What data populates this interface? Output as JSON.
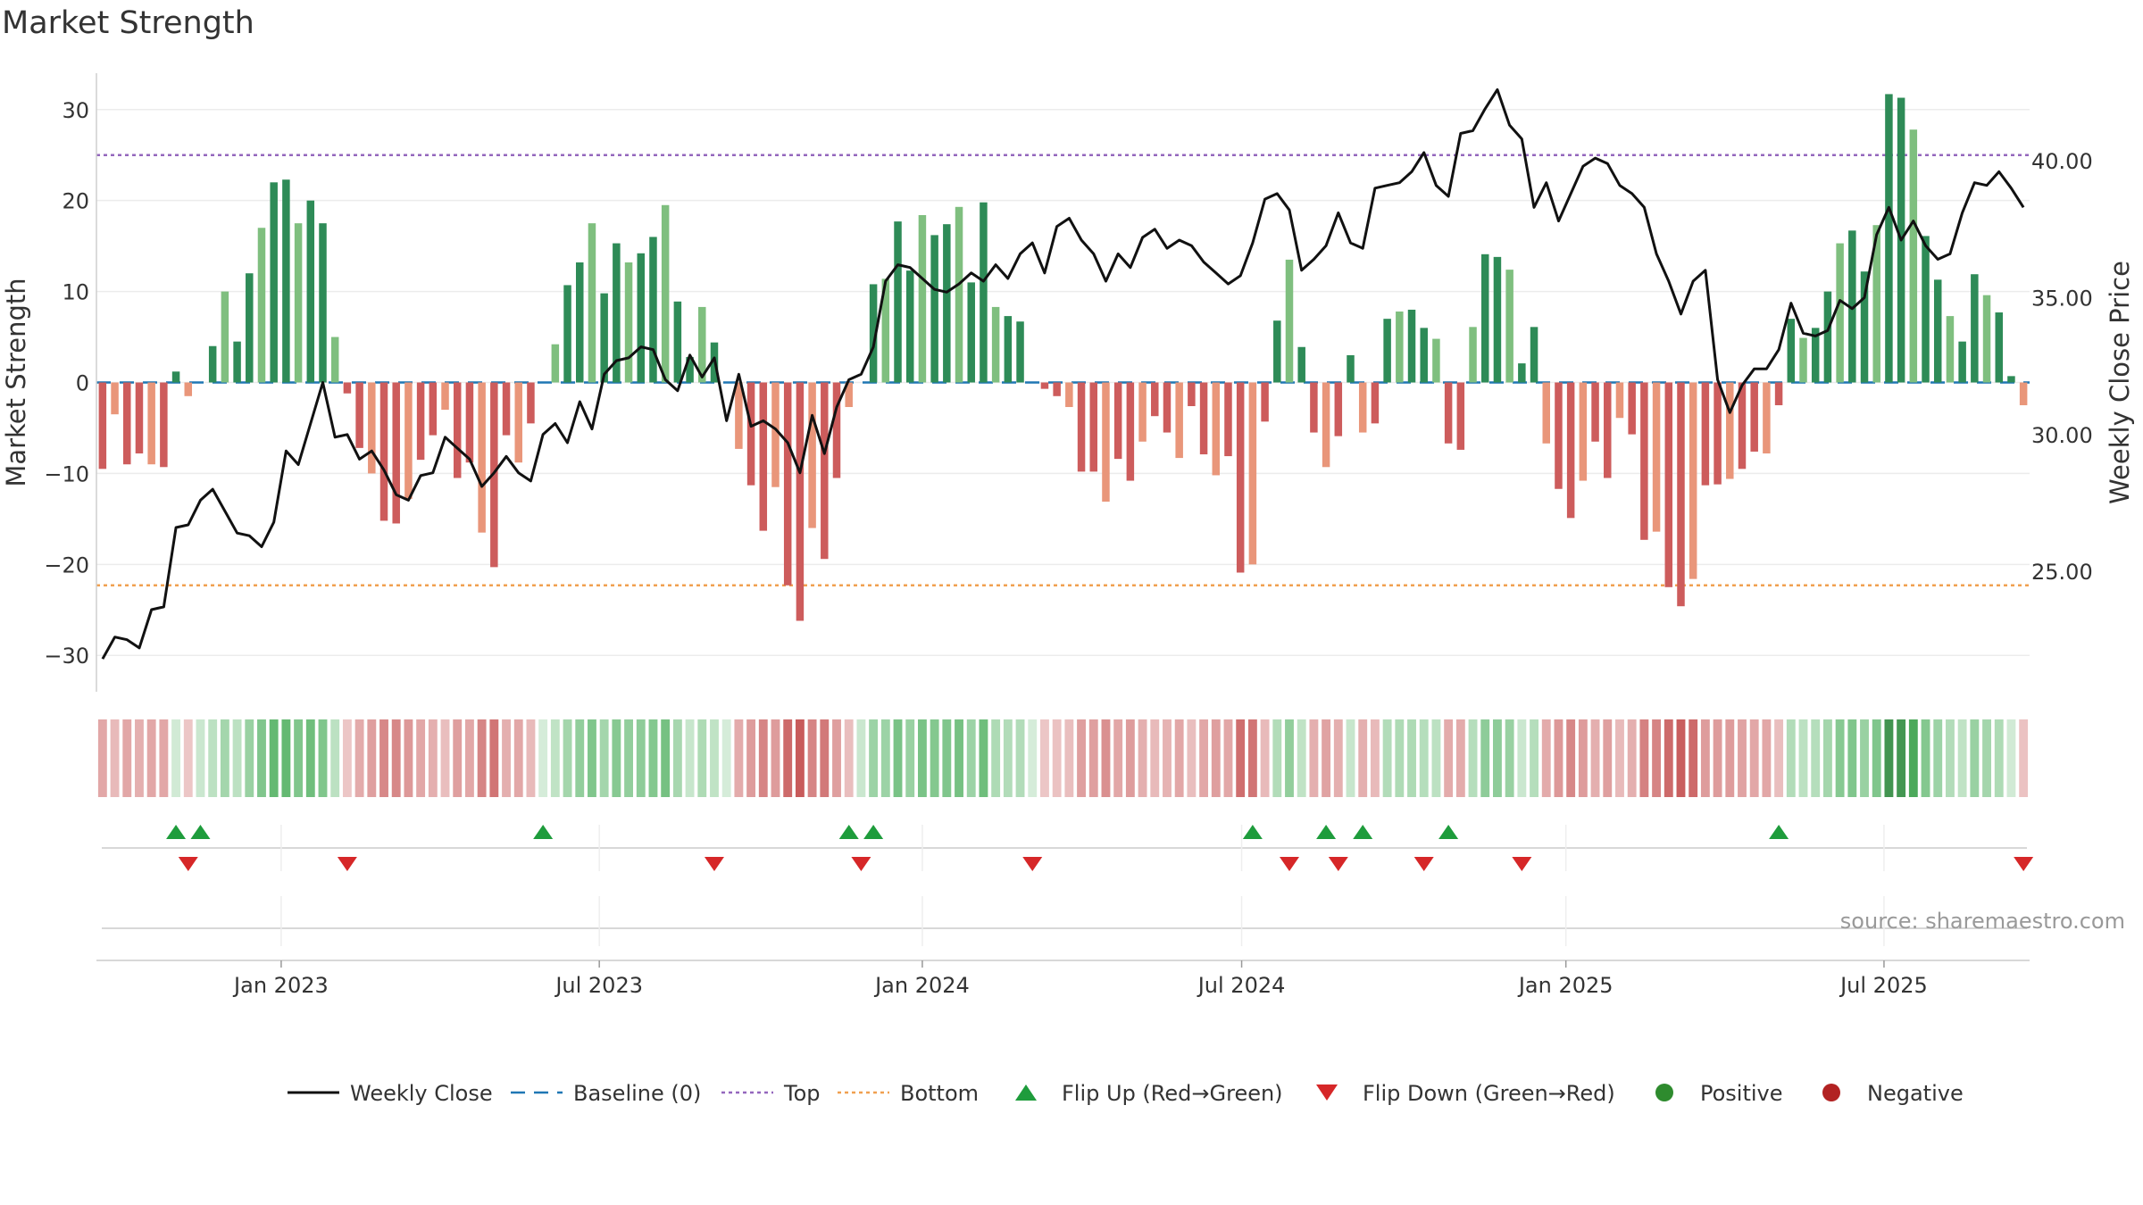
{
  "chart_data": {
    "type": "bar",
    "title": "Market Strength",
    "ylabel_left": "Market Strength",
    "ylabel_right": "Weekly Close Price",
    "ylim_left": [
      -34,
      34
    ],
    "yticks_left": [
      30,
      20,
      10,
      0,
      -10,
      -20,
      -30
    ],
    "ytick_labels_left": [
      "30",
      "20",
      "10",
      "0",
      "−10",
      "−20",
      "−30"
    ],
    "ylim_right": [
      20.6,
      43.2
    ],
    "yticks_right": [
      40,
      35,
      30,
      25
    ],
    "ytick_labels_right": [
      "40.00",
      "35.00",
      "30.00",
      "25.00"
    ],
    "x_start_date": "2022-09-26",
    "x_range_weeks": [
      -0.5,
      157.5
    ],
    "x_ticks": [
      {
        "label": "Jan 2023",
        "week": 14.6
      },
      {
        "label": "Jul 2023",
        "week": 40.6
      },
      {
        "label": "Jan 2024",
        "week": 67.0
      },
      {
        "label": "Jul 2024",
        "week": 93.1
      },
      {
        "label": "Jan 2025",
        "week": 119.6
      },
      {
        "label": "Jul 2025",
        "week": 145.6
      }
    ],
    "top_level": 25,
    "bottom_level": -22.3,
    "strength": [
      -9.5,
      -3.5,
      -9,
      -7.8,
      -9,
      -9.3,
      1.2,
      -1.5,
      0,
      4,
      10,
      4.5,
      12,
      17,
      22,
      22.3,
      17.5,
      20,
      17.5,
      5,
      -1.2,
      -7.2,
      -10,
      -15.2,
      -15.5,
      -12.8,
      -8.5,
      -5.8,
      -3,
      -10.5,
      -8.8,
      -16.5,
      -20.3,
      -5.8,
      -8.8,
      -4.5,
      0,
      4.2,
      10.7,
      13.2,
      17.5,
      9.8,
      15.3,
      13.2,
      14.2,
      16,
      19.5,
      8.9,
      2.8,
      8.3,
      4.4,
      0,
      -7.3,
      -11.3,
      -16.3,
      -11.5,
      -22.3,
      -26.2,
      -16,
      -19.4,
      -10.5,
      -2.7,
      0,
      10.8,
      11.4,
      17.7,
      12.3,
      18.4,
      16.2,
      17.4,
      19.3,
      11,
      19.8,
      8.3,
      7.3,
      6.7,
      0,
      -0.7,
      -1.5,
      -2.7,
      -9.8,
      -9.8,
      -13.1,
      -8.4,
      -10.8,
      -6.5,
      -3.7,
      -5.5,
      -8.3,
      -2.6,
      -7.9,
      -10.2,
      -8.1,
      -20.9,
      -20,
      -4.3,
      6.8,
      13.5,
      3.9,
      -5.5,
      -9.3,
      -5.9,
      3,
      -5.5,
      -4.5,
      7,
      7.8,
      8,
      6,
      4.8,
      -6.7,
      -7.4,
      6.1,
      14.1,
      13.8,
      12.4,
      2.1,
      6.1,
      -6.7,
      -11.7,
      -14.9,
      -10.8,
      -6.5,
      -10.5,
      -3.9,
      -5.7,
      -17.3,
      -16.4,
      -22.5,
      -24.6,
      -21.6,
      -11.3,
      -11.2,
      -10.6,
      -9.5,
      -7.6,
      -7.8,
      -2.5,
      7,
      4.9,
      6,
      10,
      15.3,
      16.7,
      12.2,
      17.3,
      31.7,
      31.3,
      27.8,
      16.1,
      11.3,
      7.3,
      4.5,
      11.9,
      9.6,
      7.7,
      0.7,
      -2.5
    ],
    "weekly_close": [
      21.8,
      22.6,
      22.5,
      22.2,
      23.6,
      23.7,
      26.6,
      26.7,
      27.6,
      28,
      27.2,
      26.4,
      26.3,
      25.9,
      26.8,
      29.4,
      28.9,
      30.4,
      31.9,
      29.9,
      30,
      29.1,
      29.4,
      28.7,
      27.8,
      27.6,
      28.5,
      28.6,
      29.9,
      29.5,
      29.1,
      28.1,
      28.6,
      29.2,
      28.6,
      28.3,
      30,
      30.4,
      29.7,
      31.2,
      30.2,
      32.2,
      32.7,
      32.8,
      33.2,
      33.1,
      32,
      31.6,
      32.9,
      32.1,
      32.8,
      30.5,
      32.2,
      30.3,
      30.5,
      30.2,
      29.7,
      28.6,
      30.7,
      29.3,
      31,
      32,
      32.2,
      33.2,
      35.6,
      36.2,
      36.1,
      35.7,
      35.3,
      35.2,
      35.5,
      35.9,
      35.6,
      36.2,
      35.7,
      36.6,
      37,
      35.9,
      37.6,
      37.9,
      37.1,
      36.6,
      35.6,
      36.6,
      36.1,
      37.2,
      37.5,
      36.8,
      37.1,
      36.9,
      36.3,
      35.9,
      35.5,
      35.8,
      37,
      38.6,
      38.8,
      38.2,
      36,
      36.4,
      36.9,
      38.1,
      37,
      36.8,
      39,
      39.1,
      39.2,
      39.6,
      40.3,
      39.1,
      38.7,
      41,
      41.1,
      41.9,
      42.6,
      41.3,
      40.8,
      38.3,
      39.2,
      37.8,
      38.8,
      39.8,
      40.1,
      39.9,
      39.1,
      38.8,
      38.3,
      36.6,
      35.6,
      34.4,
      35.6,
      36,
      32,
      30.8,
      31.8,
      32.4,
      32.4,
      33.1,
      34.8,
      33.7,
      33.6,
      33.8,
      34.9,
      34.6,
      35,
      37.3,
      38.3,
      37.1,
      37.8,
      36.9,
      36.4,
      36.6,
      38.1,
      39.2,
      39.1,
      39.6,
      39,
      38.3
    ],
    "color_strip_value": [
      -8,
      -4,
      -8,
      -6,
      -8,
      -8,
      1,
      -1,
      2,
      5,
      10,
      5,
      12,
      17,
      22,
      22,
      17,
      20,
      17,
      5,
      -1,
      -7,
      -10,
      -15,
      -15,
      -12,
      -8,
      -6,
      -3,
      -10,
      -8,
      -16,
      -20,
      -6,
      -8,
      -4,
      0,
      4,
      10,
      13,
      17,
      10,
      15,
      13,
      14,
      16,
      19,
      9,
      3,
      8,
      4,
      0,
      -7,
      -11,
      -16,
      -11,
      -22,
      -26,
      -16,
      -19,
      -10,
      -3,
      2,
      11,
      11,
      18,
      12,
      18,
      16,
      17,
      19,
      11,
      20,
      8,
      7,
      7,
      0,
      -1,
      -2,
      -3,
      -10,
      -10,
      -13,
      -8,
      -11,
      -6,
      -4,
      -5,
      -8,
      -3,
      -8,
      -10,
      -8,
      -21,
      -20,
      -4,
      7,
      13,
      4,
      -6,
      -9,
      -6,
      3,
      -6,
      -4,
      7,
      8,
      8,
      6,
      5,
      -7,
      -7,
      6,
      14,
      14,
      12,
      2,
      6,
      -7,
      -12,
      -15,
      -11,
      -6,
      -10,
      -4,
      -6,
      -17,
      -16,
      -22,
      -25,
      -22,
      -11,
      -11,
      -11,
      -9,
      -8,
      -8,
      -3,
      7,
      5,
      6,
      10,
      15,
      17,
      12,
      17,
      32,
      31,
      28,
      16,
      11,
      7,
      4,
      12,
      10,
      8,
      1,
      -2
    ],
    "flip_up_weeks": [
      6,
      8,
      36,
      61,
      63,
      94,
      100,
      103,
      110,
      137
    ],
    "flip_down_weeks": [
      7,
      20,
      50,
      62,
      76,
      97,
      101,
      108,
      116,
      157
    ],
    "legend": [
      {
        "label": "Weekly Close",
        "kind": "line",
        "color": "#111111"
      },
      {
        "label": "Baseline (0)",
        "kind": "dash",
        "color": "#1f77b4"
      },
      {
        "label": "Top",
        "kind": "dot",
        "color": "#9467bd"
      },
      {
        "label": "Bottom",
        "kind": "dot",
        "color": "#f0a050"
      },
      {
        "label": "Flip Up (Red→Green)",
        "kind": "tri-up",
        "color": "#1e9c3c"
      },
      {
        "label": "Flip Down (Green→Red)",
        "kind": "tri-down",
        "color": "#d62728"
      },
      {
        "label": "Positive",
        "kind": "circle",
        "color": "#2e8b2e"
      },
      {
        "label": "Negative",
        "kind": "circle",
        "color": "#b22222"
      }
    ],
    "source": "source: sharemaestro.com",
    "colors": {
      "pos_strong": "#2e8b57",
      "pos_light": "#7fbf7f",
      "neg_strong": "#cd5c5c",
      "neg_light": "#e9967a",
      "line": "#111111",
      "baseline": "#1f77b4",
      "top": "#9467bd",
      "bottom": "#f0a050"
    }
  }
}
